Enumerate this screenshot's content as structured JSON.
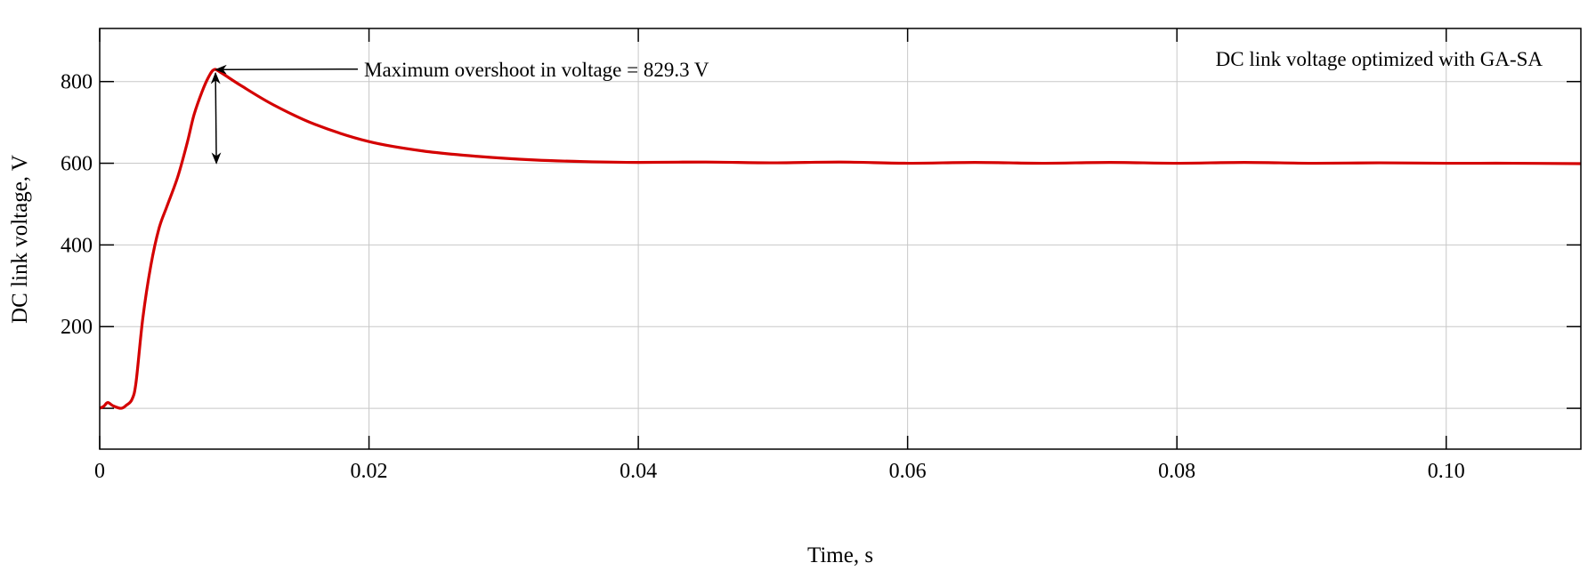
{
  "chart_data": {
    "type": "line",
    "title": "",
    "xlabel": "Time, s",
    "ylabel": "DC link voltage, V",
    "xlim": [
      0,
      0.11
    ],
    "ylim": [
      -100,
      930
    ],
    "grid": true,
    "x_ticks": [
      0,
      0.02,
      0.04,
      0.06,
      0.08,
      0.1
    ],
    "x_tick_labels": [
      "0",
      "0.02",
      "0.04",
      "0.06",
      "0.08",
      "0.10"
    ],
    "y_ticks": [
      0,
      200,
      400,
      600,
      800
    ],
    "y_tick_labels": [
      "",
      "200",
      "400",
      "600",
      "800"
    ],
    "series": [
      {
        "color": "#d40000",
        "x": [
          0,
          0.0003,
          0.0006,
          0.001,
          0.0016,
          0.002,
          0.0024,
          0.0027,
          0.0032,
          0.0038,
          0.0044,
          0.005,
          0.0058,
          0.0065,
          0.007,
          0.0076,
          0.0081,
          0.0085,
          0.009,
          0.0105,
          0.0129,
          0.016,
          0.02,
          0.024,
          0.028,
          0.0323,
          0.036,
          0.04,
          0.045,
          0.05,
          0.055,
          0.06,
          0.065,
          0.07,
          0.075,
          0.08,
          0.085,
          0.09,
          0.095,
          0.1,
          0.105,
          0.11
        ],
        "y": [
          0,
          5,
          14,
          6,
          0,
          8,
          22,
          64,
          220,
          350,
          440,
          495,
          567,
          650,
          718,
          775,
          812,
          829.3,
          822,
          790,
          743,
          695,
          653,
          630,
          617,
          608,
          604,
          602,
          603,
          601,
          603,
          600,
          602,
          600,
          602,
          600,
          602,
          600,
          601,
          600,
          600,
          599
        ]
      }
    ],
    "annotations": [
      {
        "text": "Maximum overshoot in voltage = 829.3 V",
        "points_to": [
          0.0085,
          829.3
        ]
      },
      {
        "text": "DC link voltage optimized with GA-SA",
        "placement": "top-right"
      }
    ],
    "overshoot_marker": {
      "from": 829.3,
      "to": 600,
      "x": 0.0086
    }
  }
}
